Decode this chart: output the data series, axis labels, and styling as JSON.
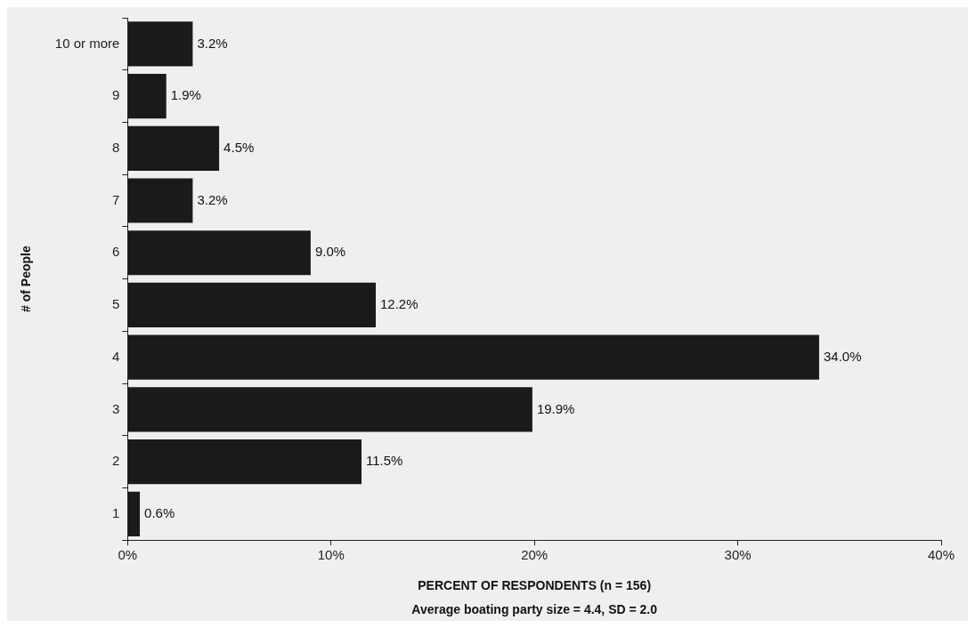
{
  "chart_data": {
    "type": "bar",
    "orientation": "horizontal",
    "ylabel": "# of People",
    "xlabel": "PERCENT OF RESPONDENTS (n = 156)",
    "annotations": [
      "Average boating party size = 4.4, SD = 2.0"
    ],
    "categories": [
      "10 or more",
      "9",
      "8",
      "7",
      "6",
      "5",
      "4",
      "3",
      "2",
      "1"
    ],
    "values": [
      3.2,
      1.9,
      4.5,
      3.2,
      9.0,
      12.2,
      34.0,
      19.9,
      11.5,
      0.6
    ],
    "value_labels": [
      "3.2%",
      "1.9%",
      "4.5%",
      "3.2%",
      "9.0%",
      "12.2%",
      "34.0%",
      "19.9%",
      "11.5%",
      "0.6%"
    ],
    "color": "#1a1a1a",
    "xlim": [
      0,
      40
    ],
    "xticks": [
      {
        "value": 0,
        "label": "0%"
      },
      {
        "value": 10,
        "label": "10%"
      },
      {
        "value": 20,
        "label": "20%"
      },
      {
        "value": 30,
        "label": "30%"
      },
      {
        "value": 40,
        "label": "40%"
      }
    ],
    "grid": false,
    "legend": false
  }
}
